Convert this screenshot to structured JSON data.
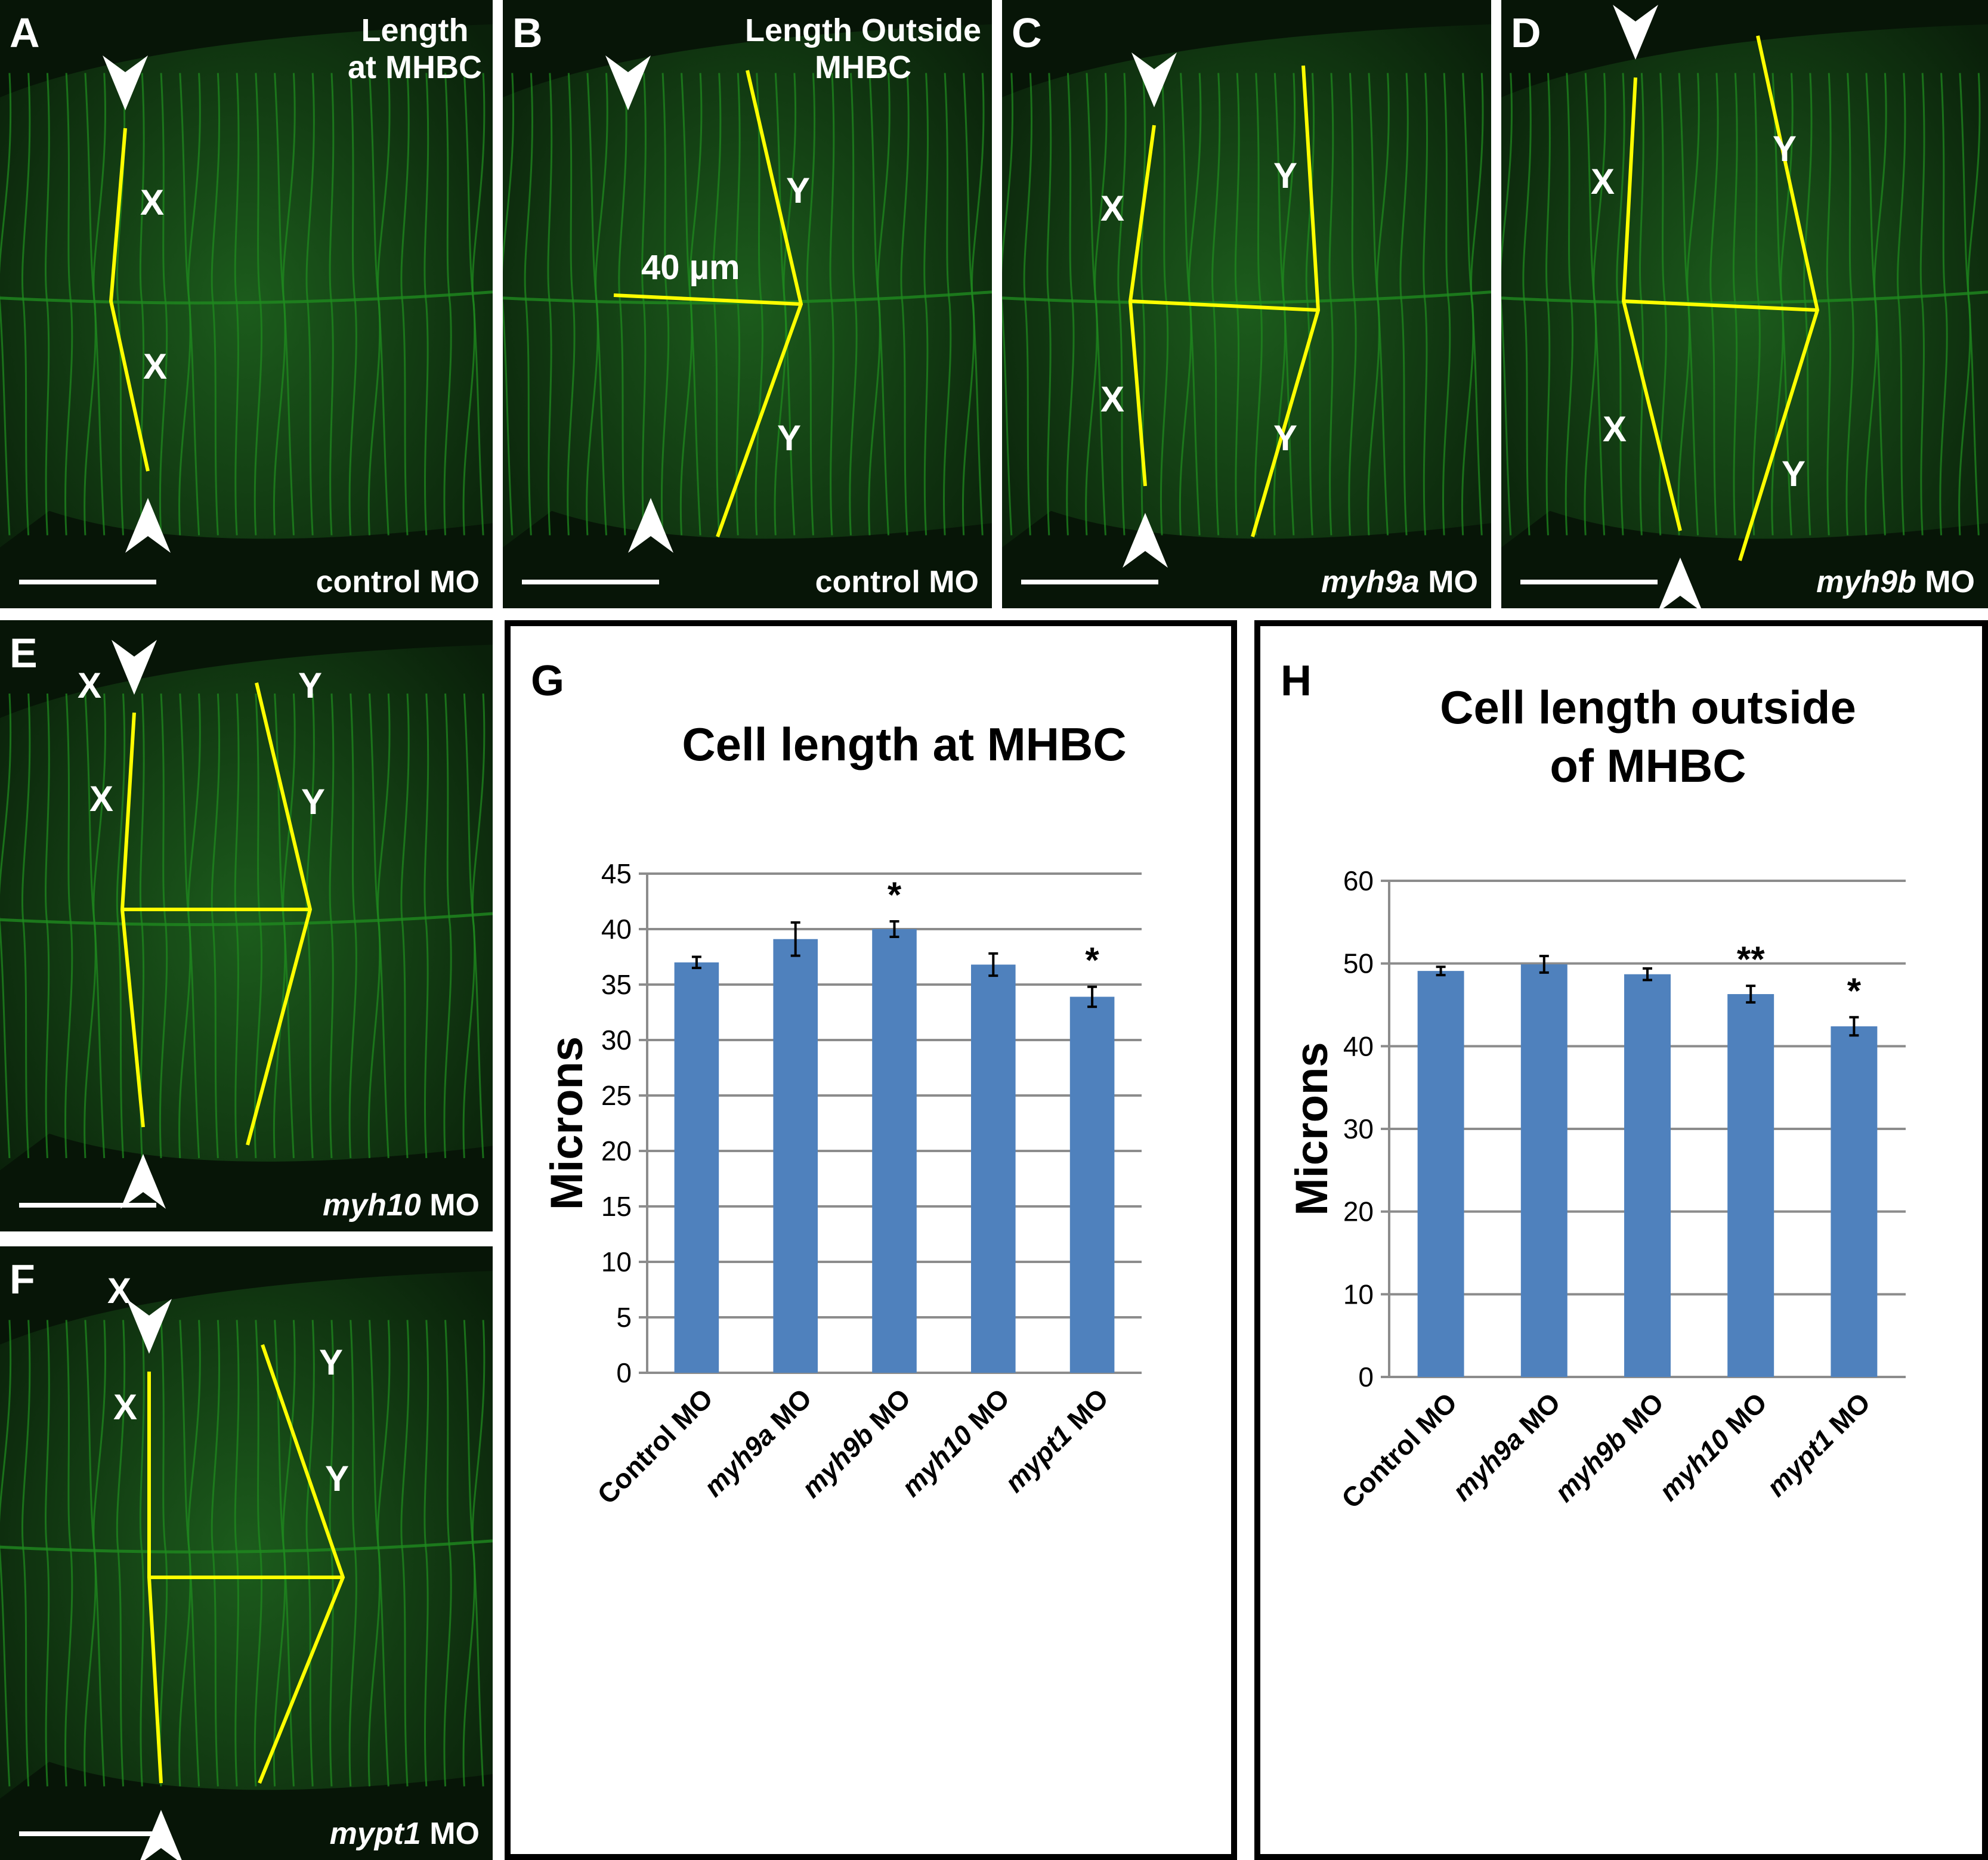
{
  "panels": [
    {
      "letter": "A",
      "title": "Length\nat MHBC",
      "condition_gene": "",
      "condition_text": "control MO",
      "labels": [
        "X",
        "X"
      ]
    },
    {
      "letter": "B",
      "title": "Length Outside\nMHBC",
      "condition_gene": "",
      "condition_text": "control MO",
      "labels": [
        "Y",
        "Y"
      ],
      "measure": "40 µm"
    },
    {
      "letter": "C",
      "title": "",
      "condition_gene": "myh9a",
      "condition_text": " MO",
      "labels": [
        "X",
        "X",
        "Y",
        "Y"
      ]
    },
    {
      "letter": "D",
      "title": "",
      "condition_gene": "myh9b",
      "condition_text": " MO",
      "labels": [
        "X",
        "X",
        "Y",
        "Y"
      ]
    },
    {
      "letter": "E",
      "title": "",
      "condition_gene": "myh10",
      "condition_text": " MO",
      "labels": [
        "X",
        "X",
        "Y",
        "Y"
      ]
    },
    {
      "letter": "F",
      "title": "",
      "condition_gene": "mypt1",
      "condition_text": " MO",
      "labels": [
        "X",
        "X",
        "Y",
        "Y"
      ]
    }
  ],
  "colors": {
    "bar": "#4f81bd",
    "overlay_line": "#ffff00",
    "micrograph": "#0d2a0d",
    "membrane": "#1f8a1f"
  },
  "chart_data": [
    {
      "letter": "G",
      "type": "bar",
      "title": "Cell length at MHBC",
      "ylabel": "Microns",
      "categories": [
        {
          "gene": "Control",
          "suffix": " MO",
          "italic": false
        },
        {
          "gene": "myh9a",
          "suffix": " MO",
          "italic": true
        },
        {
          "gene": "myh9b",
          "suffix": " MO",
          "italic": true
        },
        {
          "gene": "myh10",
          "suffix": " MO",
          "italic": true
        },
        {
          "gene": "mypt1",
          "suffix": " MO",
          "italic": true
        }
      ],
      "values": [
        37.0,
        39.1,
        40.0,
        36.8,
        33.9
      ],
      "errors": [
        0.5,
        1.5,
        0.7,
        1.0,
        0.9
      ],
      "significance": [
        "",
        "",
        "*",
        "",
        "*"
      ],
      "ylim": [
        0,
        45
      ],
      "yticks": [
        0,
        5,
        10,
        15,
        20,
        25,
        30,
        35,
        40,
        45
      ],
      "grid": true
    },
    {
      "letter": "H",
      "type": "bar",
      "title": "Cell length outside\nof MHBC",
      "ylabel": "Microns",
      "categories": [
        {
          "gene": "Control",
          "suffix": " MO",
          "italic": false
        },
        {
          "gene": "myh9a",
          "suffix": " MO",
          "italic": true
        },
        {
          "gene": "myh9b",
          "suffix": " MO",
          "italic": true
        },
        {
          "gene": "myh10",
          "suffix": " MO",
          "italic": true
        },
        {
          "gene": "mypt1",
          "suffix": " MO",
          "italic": true
        }
      ],
      "values": [
        49.1,
        49.9,
        48.7,
        46.3,
        42.4
      ],
      "errors": [
        0.5,
        1.0,
        0.7,
        1.0,
        1.1
      ],
      "significance": [
        "",
        "",
        "",
        "**",
        "*"
      ],
      "ylim": [
        0,
        60
      ],
      "yticks": [
        0,
        10,
        20,
        30,
        40,
        50,
        60
      ],
      "grid": true
    }
  ]
}
